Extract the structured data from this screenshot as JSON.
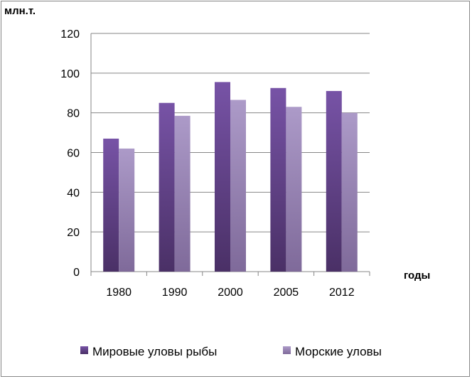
{
  "chart_data": {
    "type": "bar",
    "ylabel": "млн.т.",
    "xlabel": "годы",
    "categories": [
      "1980",
      "1990",
      "2000",
      "2005",
      "2012"
    ],
    "series": [
      {
        "name": "Мировые уловы рыбы",
        "values": [
          67,
          85,
          95.5,
          92.5,
          91
        ],
        "color": "#6a4b91"
      },
      {
        "name": "Морские уловы",
        "values": [
          62,
          78.5,
          86.5,
          83,
          80
        ],
        "color": "#9b87b7"
      }
    ],
    "ylim": [
      0,
      120
    ],
    "yticks": [
      0,
      20,
      40,
      60,
      80,
      100,
      120
    ],
    "grid": true,
    "legend": "bottom"
  }
}
